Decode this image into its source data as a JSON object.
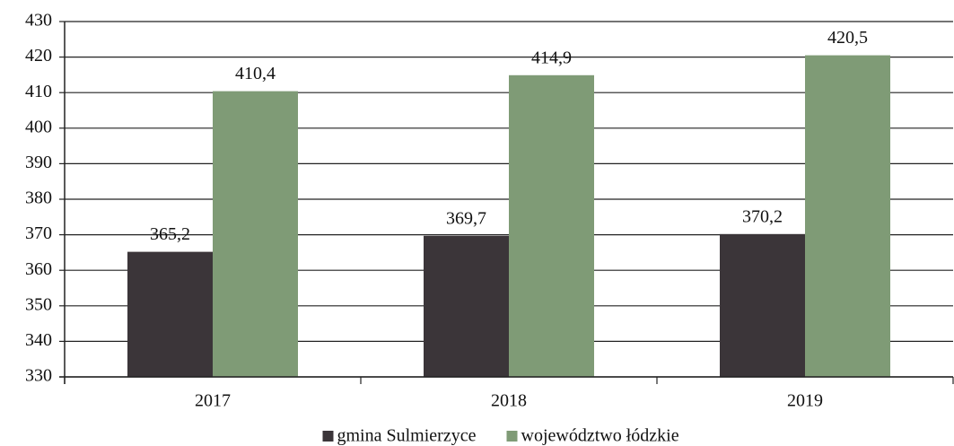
{
  "chart_data": {
    "type": "bar",
    "categories": [
      "2017",
      "2018",
      "2019"
    ],
    "series": [
      {
        "name": "gmina Sulmierzyce",
        "color": "#3b3539",
        "values": [
          365.2,
          369.7,
          370.2
        ],
        "value_labels": [
          "365,2",
          "369,7",
          "370,2"
        ]
      },
      {
        "name": "województwo łódzkie",
        "color": "#7f9b76",
        "values": [
          410.4,
          414.9,
          420.5
        ],
        "value_labels": [
          "410,4",
          "414,9",
          "420,5"
        ]
      }
    ],
    "ylim": [
      330,
      430
    ],
    "yticks": [
      330,
      340,
      350,
      360,
      370,
      380,
      390,
      400,
      410,
      420,
      430
    ],
    "grid": true,
    "legend": "bottom"
  }
}
